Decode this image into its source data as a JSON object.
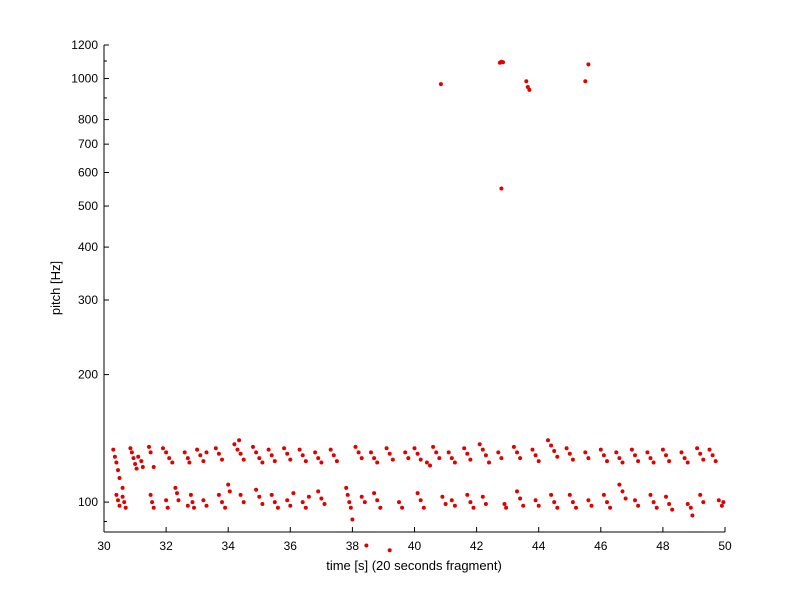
{
  "chart_data": {
    "type": "scatter",
    "title": "",
    "xlabel": "time [s] (20 seconds fragment)",
    "ylabel": "pitch [Hz]",
    "xlim": [
      30,
      50
    ],
    "ylim": [
      85,
      1200
    ],
    "yscale": "log",
    "grid": false,
    "legend": "none",
    "marker_color": "#e00000",
    "x_ticks": [
      30,
      32,
      34,
      36,
      38,
      40,
      42,
      44,
      46,
      48,
      50
    ],
    "y_ticks": [
      100,
      200,
      300,
      400,
      500,
      600,
      700,
      800,
      1000,
      1200
    ],
    "x_tick_labels": [
      "30",
      "32",
      "34",
      "36",
      "38",
      "40",
      "42",
      "44",
      "46",
      "48",
      "50"
    ],
    "y_tick_labels": [
      "100",
      "200",
      "300",
      "400",
      "500",
      "600",
      "700",
      "800",
      "1000",
      "1200"
    ],
    "series": [
      {
        "points": [
          [
            30.3,
            133
          ],
          [
            30.35,
            128
          ],
          [
            30.4,
            124
          ],
          [
            30.45,
            119
          ],
          [
            30.5,
            114
          ],
          [
            30.4,
            104
          ],
          [
            30.45,
            101
          ],
          [
            30.5,
            98
          ],
          [
            30.6,
            103
          ],
          [
            30.65,
            100
          ],
          [
            30.7,
            97
          ],
          [
            30.6,
            108
          ],
          [
            30.85,
            134
          ],
          [
            30.9,
            131
          ],
          [
            30.95,
            127
          ],
          [
            31.0,
            123
          ],
          [
            31.05,
            120
          ],
          [
            31.1,
            128
          ],
          [
            31.2,
            125
          ],
          [
            31.25,
            121
          ],
          [
            31.45,
            135
          ],
          [
            31.5,
            131
          ],
          [
            31.5,
            104
          ],
          [
            31.55,
            100
          ],
          [
            31.6,
            97
          ],
          [
            31.6,
            121
          ],
          [
            31.9,
            134
          ],
          [
            32.0,
            131
          ],
          [
            32.1,
            127
          ],
          [
            32.2,
            124
          ],
          [
            32.0,
            101
          ],
          [
            32.05,
            97
          ],
          [
            32.3,
            108
          ],
          [
            32.35,
            105
          ],
          [
            32.4,
            101
          ],
          [
            32.6,
            131
          ],
          [
            32.7,
            127
          ],
          [
            32.75,
            124
          ],
          [
            32.7,
            98
          ],
          [
            32.8,
            104
          ],
          [
            32.85,
            100
          ],
          [
            32.9,
            97
          ],
          [
            33.0,
            133
          ],
          [
            33.1,
            129
          ],
          [
            33.2,
            125
          ],
          [
            33.3,
            131
          ],
          [
            33.2,
            101
          ],
          [
            33.3,
            98
          ],
          [
            33.6,
            134
          ],
          [
            33.7,
            130
          ],
          [
            33.8,
            126
          ],
          [
            33.7,
            104
          ],
          [
            33.8,
            100
          ],
          [
            33.9,
            97
          ],
          [
            34.0,
            110
          ],
          [
            34.05,
            106
          ],
          [
            34.2,
            137
          ],
          [
            34.3,
            133
          ],
          [
            34.35,
            140
          ],
          [
            34.4,
            130
          ],
          [
            34.5,
            126
          ],
          [
            34.4,
            104
          ],
          [
            34.5,
            100
          ],
          [
            34.8,
            135
          ],
          [
            34.9,
            131
          ],
          [
            35.0,
            127
          ],
          [
            34.9,
            107
          ],
          [
            35.0,
            103
          ],
          [
            35.1,
            99
          ],
          [
            35.1,
            124
          ],
          [
            35.3,
            133
          ],
          [
            35.4,
            129
          ],
          [
            35.5,
            125
          ],
          [
            35.4,
            104
          ],
          [
            35.5,
            100
          ],
          [
            35.6,
            97
          ],
          [
            35.8,
            134
          ],
          [
            35.9,
            130
          ],
          [
            36.0,
            126
          ],
          [
            35.9,
            101
          ],
          [
            36.0,
            98
          ],
          [
            36.1,
            105
          ],
          [
            36.3,
            133
          ],
          [
            36.4,
            129
          ],
          [
            36.5,
            125
          ],
          [
            36.4,
            100
          ],
          [
            36.5,
            97
          ],
          [
            36.6,
            103
          ],
          [
            36.8,
            131
          ],
          [
            36.9,
            127
          ],
          [
            37.0,
            124
          ],
          [
            36.9,
            106
          ],
          [
            37.0,
            102
          ],
          [
            37.1,
            99
          ],
          [
            37.3,
            133
          ],
          [
            37.4,
            129
          ],
          [
            37.5,
            125
          ],
          [
            37.8,
            108
          ],
          [
            37.85,
            104
          ],
          [
            37.9,
            100
          ],
          [
            37.95,
            97
          ],
          [
            38.0,
            91
          ],
          [
            38.1,
            135
          ],
          [
            38.2,
            131
          ],
          [
            38.3,
            127
          ],
          [
            38.3,
            103
          ],
          [
            38.4,
            100
          ],
          [
            38.45,
            79
          ],
          [
            38.6,
            131
          ],
          [
            38.7,
            127
          ],
          [
            38.8,
            124
          ],
          [
            38.7,
            105
          ],
          [
            38.8,
            101
          ],
          [
            38.9,
            97
          ],
          [
            39.1,
            134
          ],
          [
            39.2,
            130
          ],
          [
            39.3,
            126
          ],
          [
            39.2,
            77
          ],
          [
            39.5,
            100
          ],
          [
            39.6,
            97
          ],
          [
            39.7,
            131
          ],
          [
            39.8,
            127
          ],
          [
            40.0,
            134
          ],
          [
            40.1,
            130
          ],
          [
            40.2,
            126
          ],
          [
            40.1,
            105
          ],
          [
            40.2,
            101
          ],
          [
            40.3,
            97
          ],
          [
            40.4,
            124
          ],
          [
            40.5,
            122
          ],
          [
            40.6,
            135
          ],
          [
            40.7,
            131
          ],
          [
            40.8,
            127
          ],
          [
            40.85,
            970
          ],
          [
            40.9,
            103
          ],
          [
            41.0,
            99
          ],
          [
            41.1,
            131
          ],
          [
            41.2,
            127
          ],
          [
            41.3,
            124
          ],
          [
            41.2,
            101
          ],
          [
            41.3,
            98
          ],
          [
            41.6,
            134
          ],
          [
            41.7,
            130
          ],
          [
            41.8,
            126
          ],
          [
            41.7,
            104
          ],
          [
            41.8,
            100
          ],
          [
            41.9,
            97
          ],
          [
            42.1,
            137
          ],
          [
            42.2,
            133
          ],
          [
            42.3,
            129
          ],
          [
            42.2,
            103
          ],
          [
            42.3,
            99
          ],
          [
            42.4,
            124
          ],
          [
            42.7,
            131
          ],
          [
            42.75,
            1090
          ],
          [
            42.8,
            1095
          ],
          [
            42.85,
            1092
          ],
          [
            42.8,
            550
          ],
          [
            42.8,
            127
          ],
          [
            42.9,
            99
          ],
          [
            42.95,
            97
          ],
          [
            43.2,
            135
          ],
          [
            43.3,
            131
          ],
          [
            43.4,
            127
          ],
          [
            43.3,
            106
          ],
          [
            43.4,
            102
          ],
          [
            43.5,
            98
          ],
          [
            43.6,
            985
          ],
          [
            43.65,
            955
          ],
          [
            43.7,
            940
          ],
          [
            43.8,
            133
          ],
          [
            43.9,
            129
          ],
          [
            44.0,
            125
          ],
          [
            43.9,
            101
          ],
          [
            44.0,
            98
          ],
          [
            44.3,
            140
          ],
          [
            44.4,
            136
          ],
          [
            44.5,
            132
          ],
          [
            44.6,
            128
          ],
          [
            44.4,
            104
          ],
          [
            44.5,
            100
          ],
          [
            44.6,
            97
          ],
          [
            44.9,
            134
          ],
          [
            45.0,
            130
          ],
          [
            45.1,
            126
          ],
          [
            45.0,
            104
          ],
          [
            45.1,
            100
          ],
          [
            45.2,
            97
          ],
          [
            45.5,
            985
          ],
          [
            45.6,
            1080
          ],
          [
            45.5,
            131
          ],
          [
            45.6,
            127
          ],
          [
            45.6,
            101
          ],
          [
            45.7,
            98
          ],
          [
            46.0,
            133
          ],
          [
            46.1,
            129
          ],
          [
            46.2,
            125
          ],
          [
            46.1,
            104
          ],
          [
            46.2,
            100
          ],
          [
            46.3,
            97
          ],
          [
            46.5,
            131
          ],
          [
            46.6,
            127
          ],
          [
            46.7,
            124
          ],
          [
            46.6,
            110
          ],
          [
            46.7,
            106
          ],
          [
            46.8,
            102
          ],
          [
            47.0,
            133
          ],
          [
            47.1,
            129
          ],
          [
            47.2,
            125
          ],
          [
            47.1,
            101
          ],
          [
            47.2,
            98
          ],
          [
            47.5,
            131
          ],
          [
            47.6,
            127
          ],
          [
            47.7,
            124
          ],
          [
            47.6,
            104
          ],
          [
            47.7,
            100
          ],
          [
            47.8,
            97
          ],
          [
            48.0,
            133
          ],
          [
            48.1,
            129
          ],
          [
            48.2,
            125
          ],
          [
            48.1,
            103
          ],
          [
            48.2,
            99
          ],
          [
            48.3,
            96
          ],
          [
            48.6,
            131
          ],
          [
            48.7,
            127
          ],
          [
            48.8,
            124
          ],
          [
            48.8,
            99
          ],
          [
            48.9,
            97
          ],
          [
            48.95,
            93
          ],
          [
            49.1,
            134
          ],
          [
            49.2,
            130
          ],
          [
            49.3,
            126
          ],
          [
            49.2,
            104
          ],
          [
            49.3,
            100
          ],
          [
            49.5,
            133
          ],
          [
            49.6,
            129
          ],
          [
            49.7,
            125
          ],
          [
            49.8,
            101
          ],
          [
            49.9,
            98
          ],
          [
            49.95,
            100
          ]
        ]
      }
    ]
  }
}
